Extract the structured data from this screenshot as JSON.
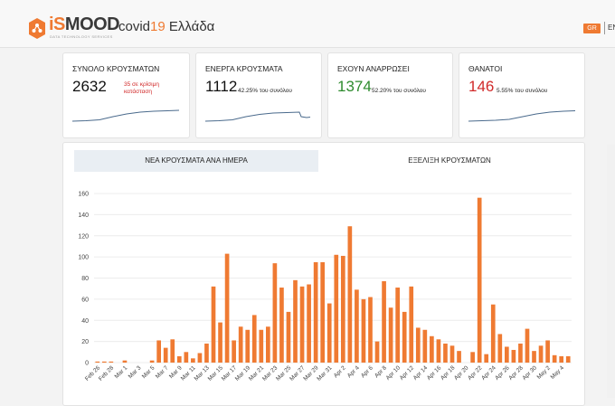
{
  "header": {
    "brand_part1": "iS",
    "brand_part2": "MOOD",
    "tagline": "DATA TECHNOLOGY SERVICES",
    "title_prefix": "covid",
    "title_number": "19",
    "title_suffix": " Ελλάδα",
    "lang_active": "GR",
    "lang_other": "EN"
  },
  "colors": {
    "accent": "#ef7a32",
    "green": "#2e8b2e",
    "red": "#d12a2a",
    "spark": "#4a6a8c"
  },
  "cards": [
    {
      "label": "ΣΥΝΟΛΟ ΚΡΟΥΣΜΑΤΩΝ",
      "value": "2632",
      "sub_line1": "35 σε κρίσιμη",
      "sub_line2": "κατάσταση"
    },
    {
      "label": "ΕΝΕΡΓΑ ΚΡΟΥΣΜΑΤΑ",
      "value": "1112",
      "sub": "42.25% του συνόλου"
    },
    {
      "label": "ΕΧΟΥΝ ΑΝΑΡΡΩΣΕΙ",
      "value": "1374",
      "sub": "52.20% του συνόλου"
    },
    {
      "label": "ΘΑΝΑΤΟΙ",
      "value": "146",
      "sub": "5.55% του συνόλου"
    }
  ],
  "tabs": {
    "daily": "ΝΕΑ ΚΡΟΥΣΜΑΤΑ ΑΝΑ ΗΜΕΡΑ",
    "evolution": "ΕΞΕΛΙΞΗ ΚΡΟΥΣΜΑΤΩΝ"
  },
  "chart_data": {
    "type": "bar",
    "title": "ΝΕΑ ΚΡΟΥΣΜΑΤΑ ΑΝΑ ΗΜΕΡΑ",
    "xlabel": "",
    "ylabel": "",
    "ylim": [
      0,
      160
    ],
    "yticks": [
      "0",
      "20",
      "40",
      "60",
      "80",
      "100",
      "120",
      "140",
      "160"
    ],
    "grid": true,
    "color": "#ef7a32",
    "x_tick_labels": [
      "Feb 26",
      "Feb 28",
      "Mar 1",
      "Mar 3",
      "Mar 5",
      "Mar 7",
      "Mar 9",
      "Mar 11",
      "Mar 13",
      "Mar 15",
      "Mar 17",
      "Mar 19",
      "Mar 21",
      "Mar 23",
      "Mar 25",
      "Mar 27",
      "Mar 29",
      "Mar 31",
      "Apr 2",
      "Apr 4",
      "Apr 6",
      "Apr 8",
      "Apr 10",
      "Apr 12",
      "Apr 14",
      "Apr 16",
      "Apr 18",
      "Apr 20",
      "Apr 22",
      "Apr 24",
      "Apr 26",
      "Apr 28",
      "Apr 30",
      "May 2",
      "May 4"
    ],
    "values": [
      1,
      1,
      1,
      0,
      2,
      0,
      0,
      0,
      2,
      21,
      14,
      22,
      6,
      10,
      4,
      9,
      18,
      72,
      38,
      103,
      21,
      34,
      31,
      45,
      31,
      34,
      94,
      71,
      48,
      78,
      72,
      74,
      95,
      95,
      56,
      102,
      101,
      129,
      69,
      60,
      62,
      20,
      77,
      52,
      71,
      48,
      72,
      33,
      31,
      25,
      22,
      18,
      16,
      11,
      0,
      10,
      156,
      8,
      55,
      27,
      15,
      12,
      18,
      32,
      11,
      16,
      21,
      7,
      6,
      6
    ]
  }
}
